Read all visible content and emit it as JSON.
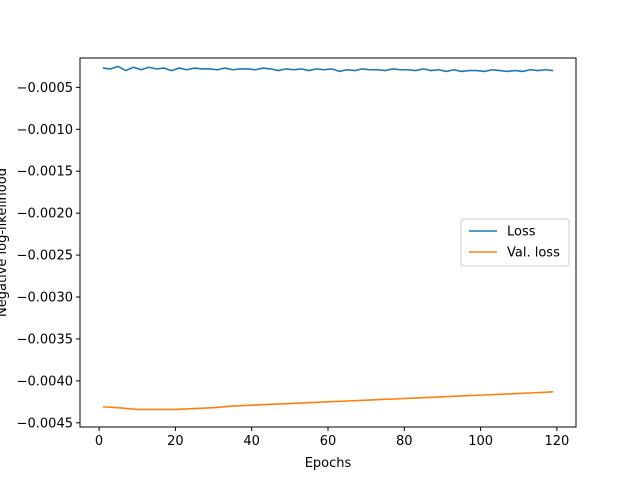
{
  "chart_data": {
    "type": "line",
    "title": "",
    "xlabel": "Epochs",
    "ylabel": "Negative log-likelihood",
    "xlim": [
      -5,
      125
    ],
    "ylim": [
      -0.00455,
      -0.00015
    ],
    "xticks": [
      0,
      20,
      40,
      60,
      80,
      100,
      120
    ],
    "xtick_labels": [
      "0",
      "20",
      "40",
      "60",
      "80",
      "100",
      "120"
    ],
    "yticks": [
      -0.0005,
      -0.001,
      -0.0015,
      -0.002,
      -0.0025,
      -0.003,
      -0.0035,
      -0.004,
      -0.0045
    ],
    "ytick_labels": [
      "−0.0005",
      "−0.0010",
      "−0.0015",
      "−0.0020",
      "−0.0025",
      "−0.0030",
      "−0.0035",
      "−0.0040",
      "−0.0045"
    ],
    "grid": false,
    "legend_position": "center-right",
    "series": [
      {
        "name": "Loss",
        "color": "#1f77b4",
        "x": [
          1,
          3,
          5,
          7,
          9,
          11,
          13,
          15,
          17,
          19,
          21,
          23,
          25,
          27,
          29,
          31,
          33,
          35,
          37,
          39,
          41,
          43,
          45,
          47,
          49,
          51,
          53,
          55,
          57,
          59,
          61,
          63,
          65,
          67,
          69,
          71,
          73,
          75,
          77,
          79,
          81,
          83,
          85,
          87,
          89,
          91,
          93,
          95,
          97,
          99,
          101,
          103,
          105,
          107,
          109,
          111,
          113,
          115,
          117,
          119
        ],
        "y": [
          -0.00027,
          -0.00028,
          -0.00025,
          -0.0003,
          -0.00026,
          -0.00029,
          -0.00026,
          -0.00028,
          -0.00027,
          -0.0003,
          -0.00027,
          -0.00029,
          -0.00027,
          -0.00028,
          -0.00028,
          -0.00029,
          -0.00027,
          -0.00029,
          -0.00028,
          -0.00028,
          -0.00029,
          -0.00027,
          -0.00028,
          -0.0003,
          -0.00028,
          -0.00029,
          -0.00028,
          -0.0003,
          -0.00028,
          -0.00029,
          -0.00028,
          -0.00031,
          -0.00029,
          -0.0003,
          -0.00028,
          -0.00029,
          -0.00029,
          -0.0003,
          -0.00028,
          -0.00029,
          -0.00029,
          -0.0003,
          -0.00028,
          -0.0003,
          -0.00029,
          -0.00031,
          -0.00029,
          -0.00031,
          -0.0003,
          -0.0003,
          -0.00031,
          -0.00029,
          -0.0003,
          -0.00031,
          -0.0003,
          -0.00031,
          -0.00029,
          -0.0003,
          -0.00029,
          -0.0003
        ]
      },
      {
        "name": "Val. loss",
        "color": "#ff7f0e",
        "x": [
          1,
          5,
          10,
          15,
          20,
          25,
          30,
          35,
          40,
          45,
          50,
          55,
          60,
          65,
          70,
          75,
          80,
          85,
          90,
          95,
          100,
          105,
          110,
          115,
          119
        ],
        "y": [
          -0.00431,
          -0.00432,
          -0.00434,
          -0.00434,
          -0.00434,
          -0.00433,
          -0.00432,
          -0.0043,
          -0.00429,
          -0.00428,
          -0.00427,
          -0.00426,
          -0.00425,
          -0.00424,
          -0.00423,
          -0.00422,
          -0.00421,
          -0.0042,
          -0.00419,
          -0.00418,
          -0.00417,
          -0.00416,
          -0.00415,
          -0.00414,
          -0.00413
        ]
      }
    ]
  }
}
